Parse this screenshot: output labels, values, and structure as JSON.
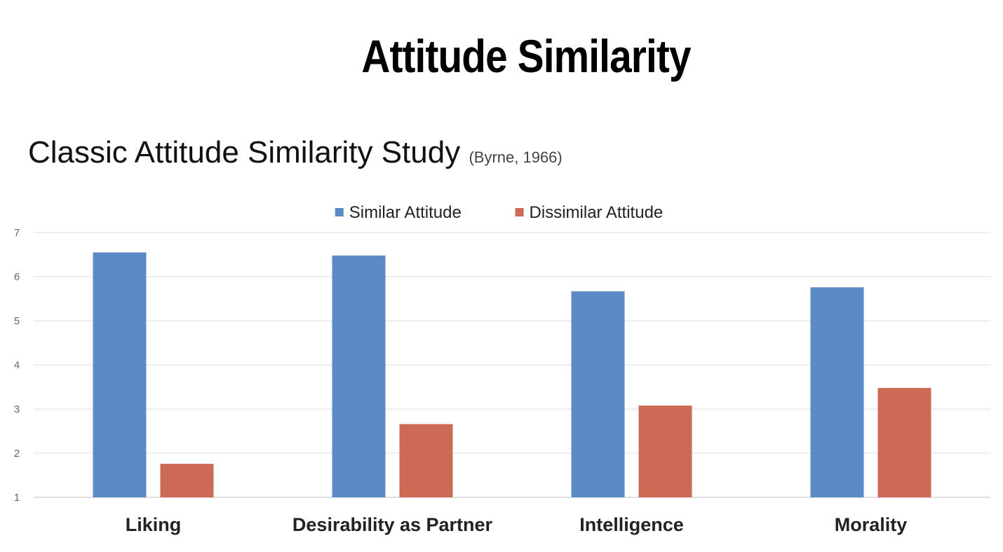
{
  "slide": {
    "title": "Attitude Similarity",
    "chart_heading": "Classic Attitude Similarity Study",
    "citation": "(Byrne, 1966)"
  },
  "chart_data": {
    "type": "bar",
    "title": "",
    "xlabel": "",
    "ylabel": "",
    "categories": [
      "Liking",
      "Desirability as Partner",
      "Intelligence",
      "Morality"
    ],
    "series": [
      {
        "name": "Similar Attitude",
        "color": "#5b8ac6",
        "values": [
          6.55,
          6.48,
          5.67,
          5.76
        ]
      },
      {
        "name": "Dissimilar Attitude",
        "color": "#cc6a55",
        "values": [
          1.76,
          2.66,
          3.08,
          3.48
        ]
      }
    ],
    "ylim": [
      1,
      7
    ],
    "yticks": [
      1,
      2,
      3,
      4,
      5,
      6,
      7
    ],
    "grid": true,
    "legend_position": "top-center"
  }
}
